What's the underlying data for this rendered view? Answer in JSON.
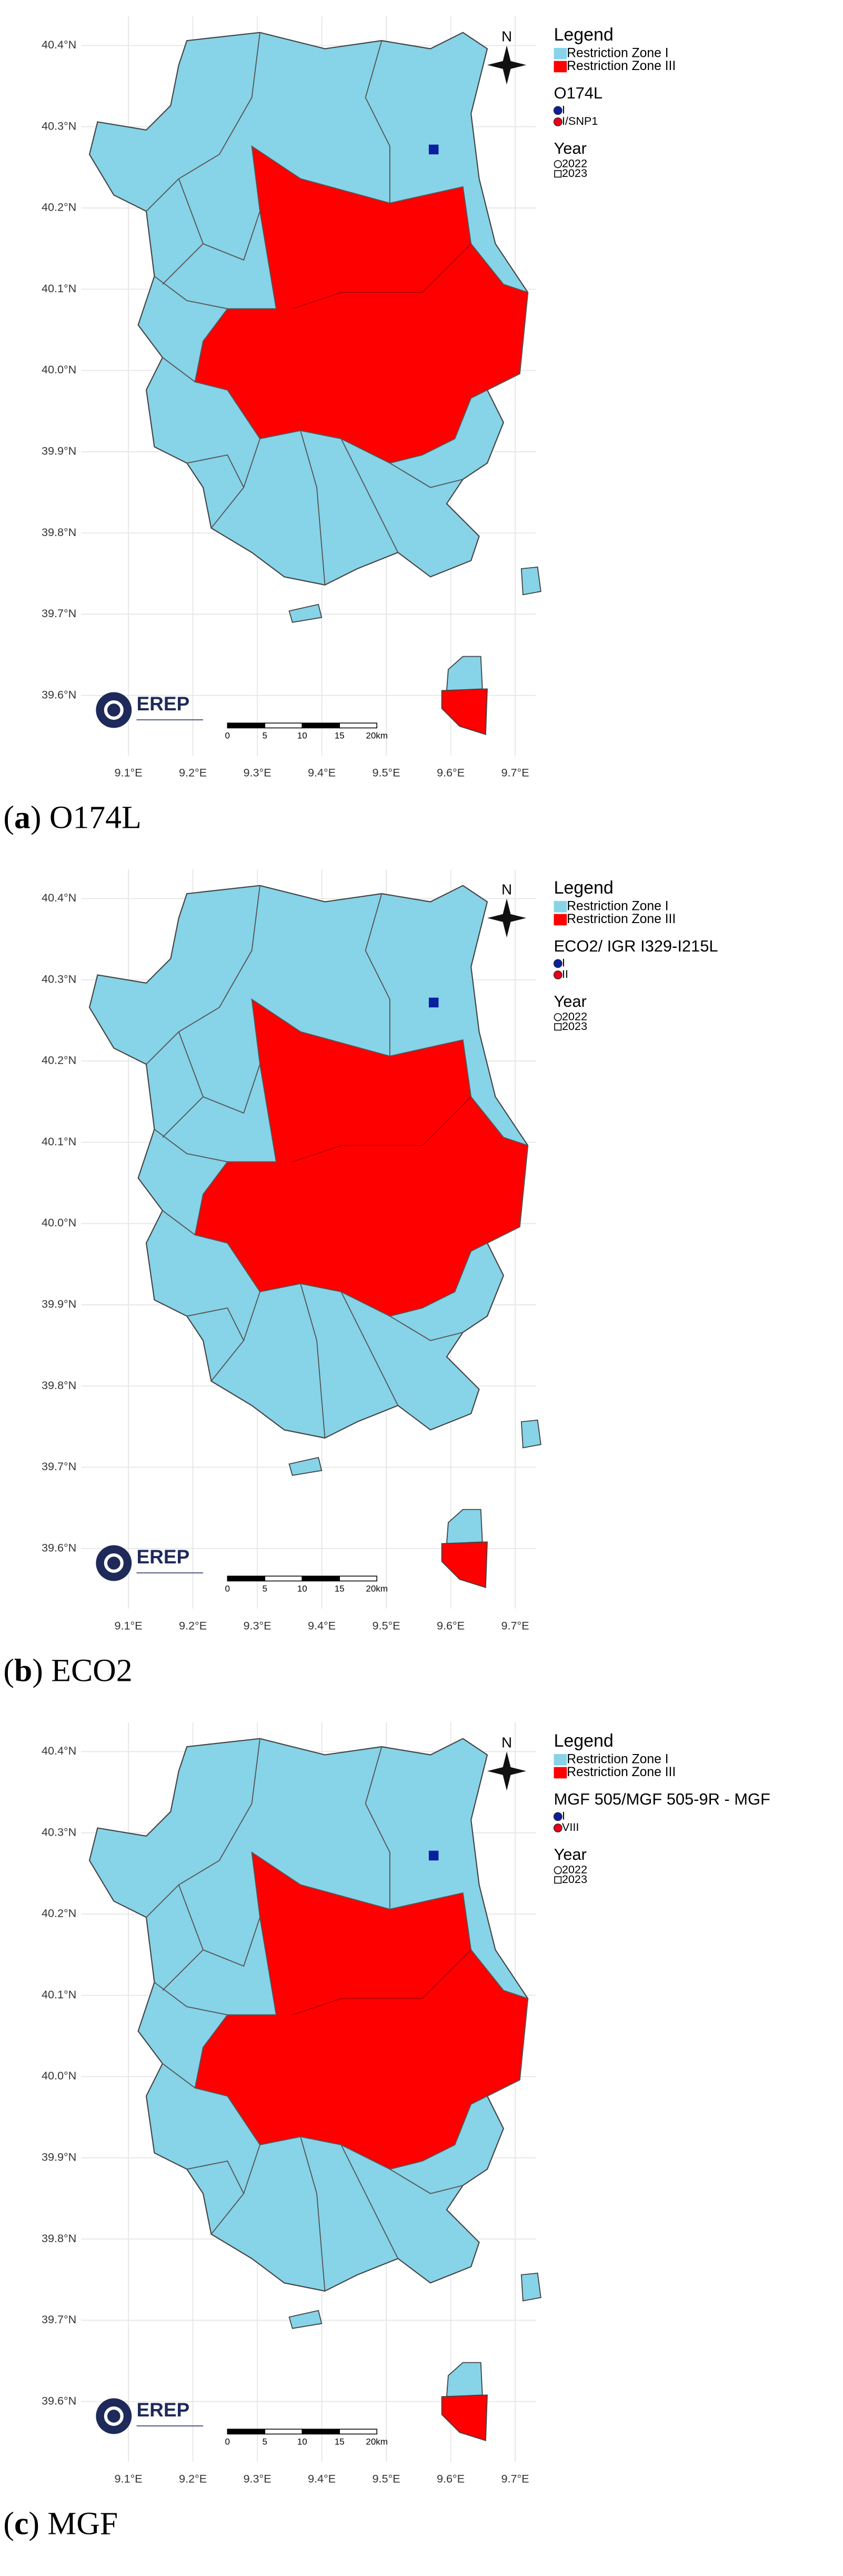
{
  "legend_title": "Legend",
  "zones": [
    {
      "name": "Restriction Zone I",
      "color": "#87d3e8"
    },
    {
      "name": "Restriction Zone III",
      "color": "#ff0000"
    }
  ],
  "year_title": "Year",
  "years": [
    "2022",
    "2023"
  ],
  "north": "N",
  "logo": "EREP",
  "lat_ticks": [
    {
      "value": 40.4,
      "label": "40.4°N"
    },
    {
      "value": 40.3,
      "label": "40.3°N"
    },
    {
      "value": 40.2,
      "label": "40.2°N"
    },
    {
      "value": 40.1,
      "label": "40.1°N"
    },
    {
      "value": 40.0,
      "label": "40.0°N"
    },
    {
      "value": 39.9,
      "label": "39.9°N"
    },
    {
      "value": 39.8,
      "label": "39.8°N"
    },
    {
      "value": 39.7,
      "label": "39.7°N"
    },
    {
      "value": 39.6,
      "label": "39.6°N"
    }
  ],
  "lon_ticks": [
    {
      "value": 9.1,
      "label": "9.1°E"
    },
    {
      "value": 9.2,
      "label": "9.2°E"
    },
    {
      "value": 9.3,
      "label": "9.3°E"
    },
    {
      "value": 9.4,
      "label": "9.4°E"
    },
    {
      "value": 9.5,
      "label": "9.5°E"
    },
    {
      "value": 9.6,
      "label": "9.6°E"
    },
    {
      "value": 9.7,
      "label": "9.7°E"
    }
  ],
  "scale_labels": [
    "0",
    "5",
    "10",
    "15",
    "20km"
  ],
  "panels": [
    {
      "caption": {
        "open": "(",
        "letter": "a",
        "close": ")",
        "text": "O174L"
      },
      "genotype_title": "O174L",
      "genotypes": [
        "I",
        "I/SNP1"
      ]
    },
    {
      "caption": {
        "open": "(",
        "letter": "b",
        "close": ")",
        "text": "ECO2"
      },
      "genotype_title": "ECO2/ IGR I329-I215L",
      "genotypes": [
        "I",
        "II"
      ]
    },
    {
      "caption": {
        "open": "(",
        "letter": "c",
        "close": ")",
        "text": "MGF"
      },
      "genotype_title": "MGF 505/MGF 505-9R - MGF",
      "genotypes": [
        "I",
        "VIII"
      ]
    }
  ]
}
